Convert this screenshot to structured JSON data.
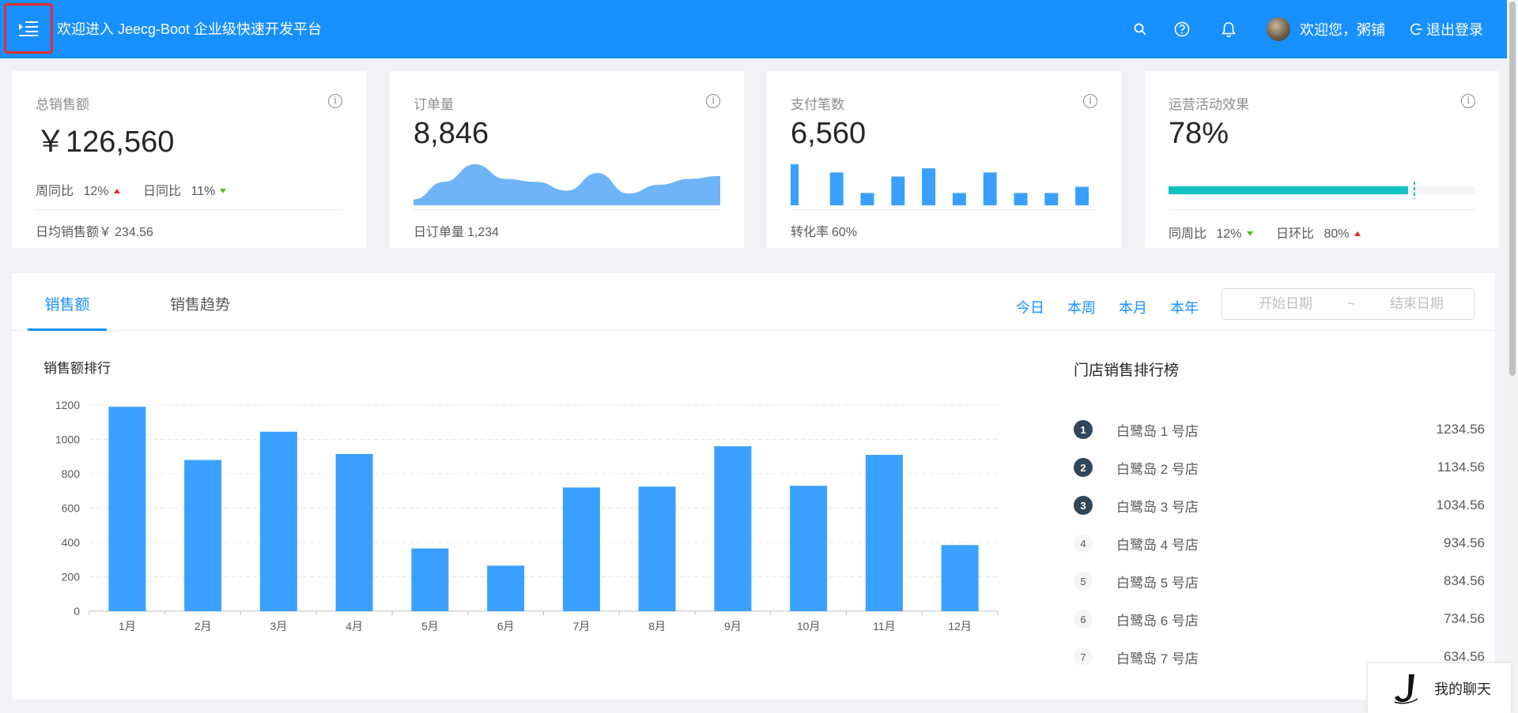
{
  "header": {
    "title": "欢迎进入 Jeecg-Boot 企业级快速开发平台",
    "greeting": "欢迎您，粥铺",
    "logout_label": "退出登录",
    "icons": [
      "menu-fold-icon",
      "search-icon",
      "question-circle-icon",
      "bell-icon",
      "logout-icon"
    ],
    "bg_color": "#1890ff"
  },
  "cards": {
    "sales": {
      "label": "总销售额",
      "value": "￥126,560",
      "week_label": "周同比",
      "week_value": "12%",
      "week_trend": "up",
      "day_label": "日同比",
      "day_value": "11%",
      "day_trend": "down",
      "foot_label": "日均销售额￥",
      "foot_value": "234.56"
    },
    "orders": {
      "label": "订单量",
      "value": "8,846",
      "foot_label": "日订单量",
      "foot_value": "1,234",
      "area_values": [
        1,
        4,
        7,
        4.5,
        4,
        2.5,
        5.5,
        2,
        3.5,
        4.5,
        5
      ]
    },
    "payments": {
      "label": "支付笔数",
      "value": "6,560",
      "foot_label": "转化率",
      "foot_value": "60%",
      "bar_values": [
        10,
        8,
        3,
        7,
        9,
        3,
        8,
        3,
        3,
        4.5
      ]
    },
    "campaign": {
      "label": "运营活动效果",
      "value": "78%",
      "progress": 0.78,
      "target": 0.8,
      "week_label": "同周比",
      "week_value": "12%",
      "week_trend": "down",
      "day_label": "日环比",
      "day_value": "80%",
      "day_trend": "up",
      "progress_color": "#13c2c2"
    }
  },
  "main": {
    "tabs": [
      {
        "label": "销售额",
        "active": true
      },
      {
        "label": "销售趋势",
        "active": false
      }
    ],
    "ranges": [
      "今日",
      "本周",
      "本月",
      "本年"
    ],
    "date_start_placeholder": "开始日期",
    "date_sep": "~",
    "date_end_placeholder": "结束日期",
    "chart_title": "销售额排行",
    "rank_title": "门店销售排行榜",
    "rank_items": [
      {
        "no": "1",
        "name": "白鹭岛 1 号店",
        "value": "1234.56"
      },
      {
        "no": "2",
        "name": "白鹭岛 2 号店",
        "value": "1134.56"
      },
      {
        "no": "3",
        "name": "白鹭岛 3 号店",
        "value": "1034.56"
      },
      {
        "no": "4",
        "name": "白鹭岛 4 号店",
        "value": "934.56"
      },
      {
        "no": "5",
        "name": "白鹭岛 5 号店",
        "value": "834.56"
      },
      {
        "no": "6",
        "name": "白鹭岛 6 号店",
        "value": "734.56"
      },
      {
        "no": "7",
        "name": "白鹭岛 7 号店",
        "value": "634.56"
      }
    ]
  },
  "chart_data": {
    "type": "bar",
    "title": "销售额排行",
    "categories": [
      "1月",
      "2月",
      "3月",
      "4月",
      "5月",
      "6月",
      "7月",
      "8月",
      "9月",
      "10月",
      "11月",
      "12月"
    ],
    "values": [
      1190,
      880,
      1045,
      915,
      365,
      265,
      720,
      725,
      960,
      730,
      910,
      385
    ],
    "yticks": [
      0,
      200,
      400,
      600,
      800,
      1000,
      1200
    ],
    "ylim": [
      0,
      1200
    ],
    "grid": true,
    "color": "#3aa0ff"
  },
  "chat": {
    "label": "我的聊天"
  }
}
